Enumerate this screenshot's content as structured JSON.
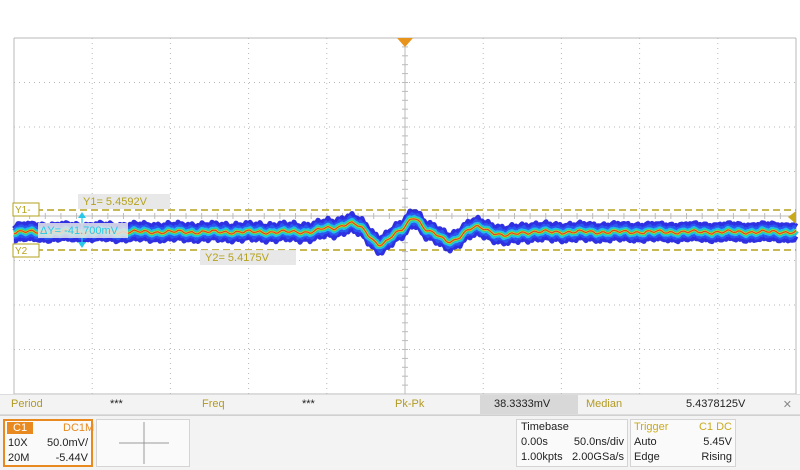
{
  "cursors": {
    "y1_tag": "Y1-",
    "y2_tag": "Y2",
    "y1_label": "Y1= 5.4592V",
    "y2_label": "Y2= 5.4175V",
    "delta_label": "ΔY= -41.700mV"
  },
  "measurements": {
    "period_label": "Period",
    "period_value": "***",
    "freq_label": "Freq",
    "freq_value": "***",
    "pkpk_label": "Pk-Pk",
    "pkpk_value": "38.3333mV",
    "median_label": "Median",
    "median_value": "5.4378125V",
    "close_glyph": "✕"
  },
  "channel": {
    "name": "C1",
    "coupling": "DC1M",
    "probe": "10X",
    "scale": "50.0mV/",
    "bandwidth": "20M",
    "offset": "-5.44V",
    "color": "#e88a20"
  },
  "timebase": {
    "title": "Timebase",
    "delay": "0.00s",
    "scale": "50.0ns/div",
    "points": "1.00kpts",
    "sample_rate": "2.00GSa/s"
  },
  "trigger": {
    "title": "Trigger",
    "source": "C1 DC",
    "mode": "Auto",
    "level": "5.45V",
    "type": "Edge",
    "slope": "Rising"
  },
  "colors": {
    "grid": "#b8b8b8",
    "cursor": "#b5a21c",
    "marker": "#e8931c",
    "accent": "#29c8e8"
  }
}
